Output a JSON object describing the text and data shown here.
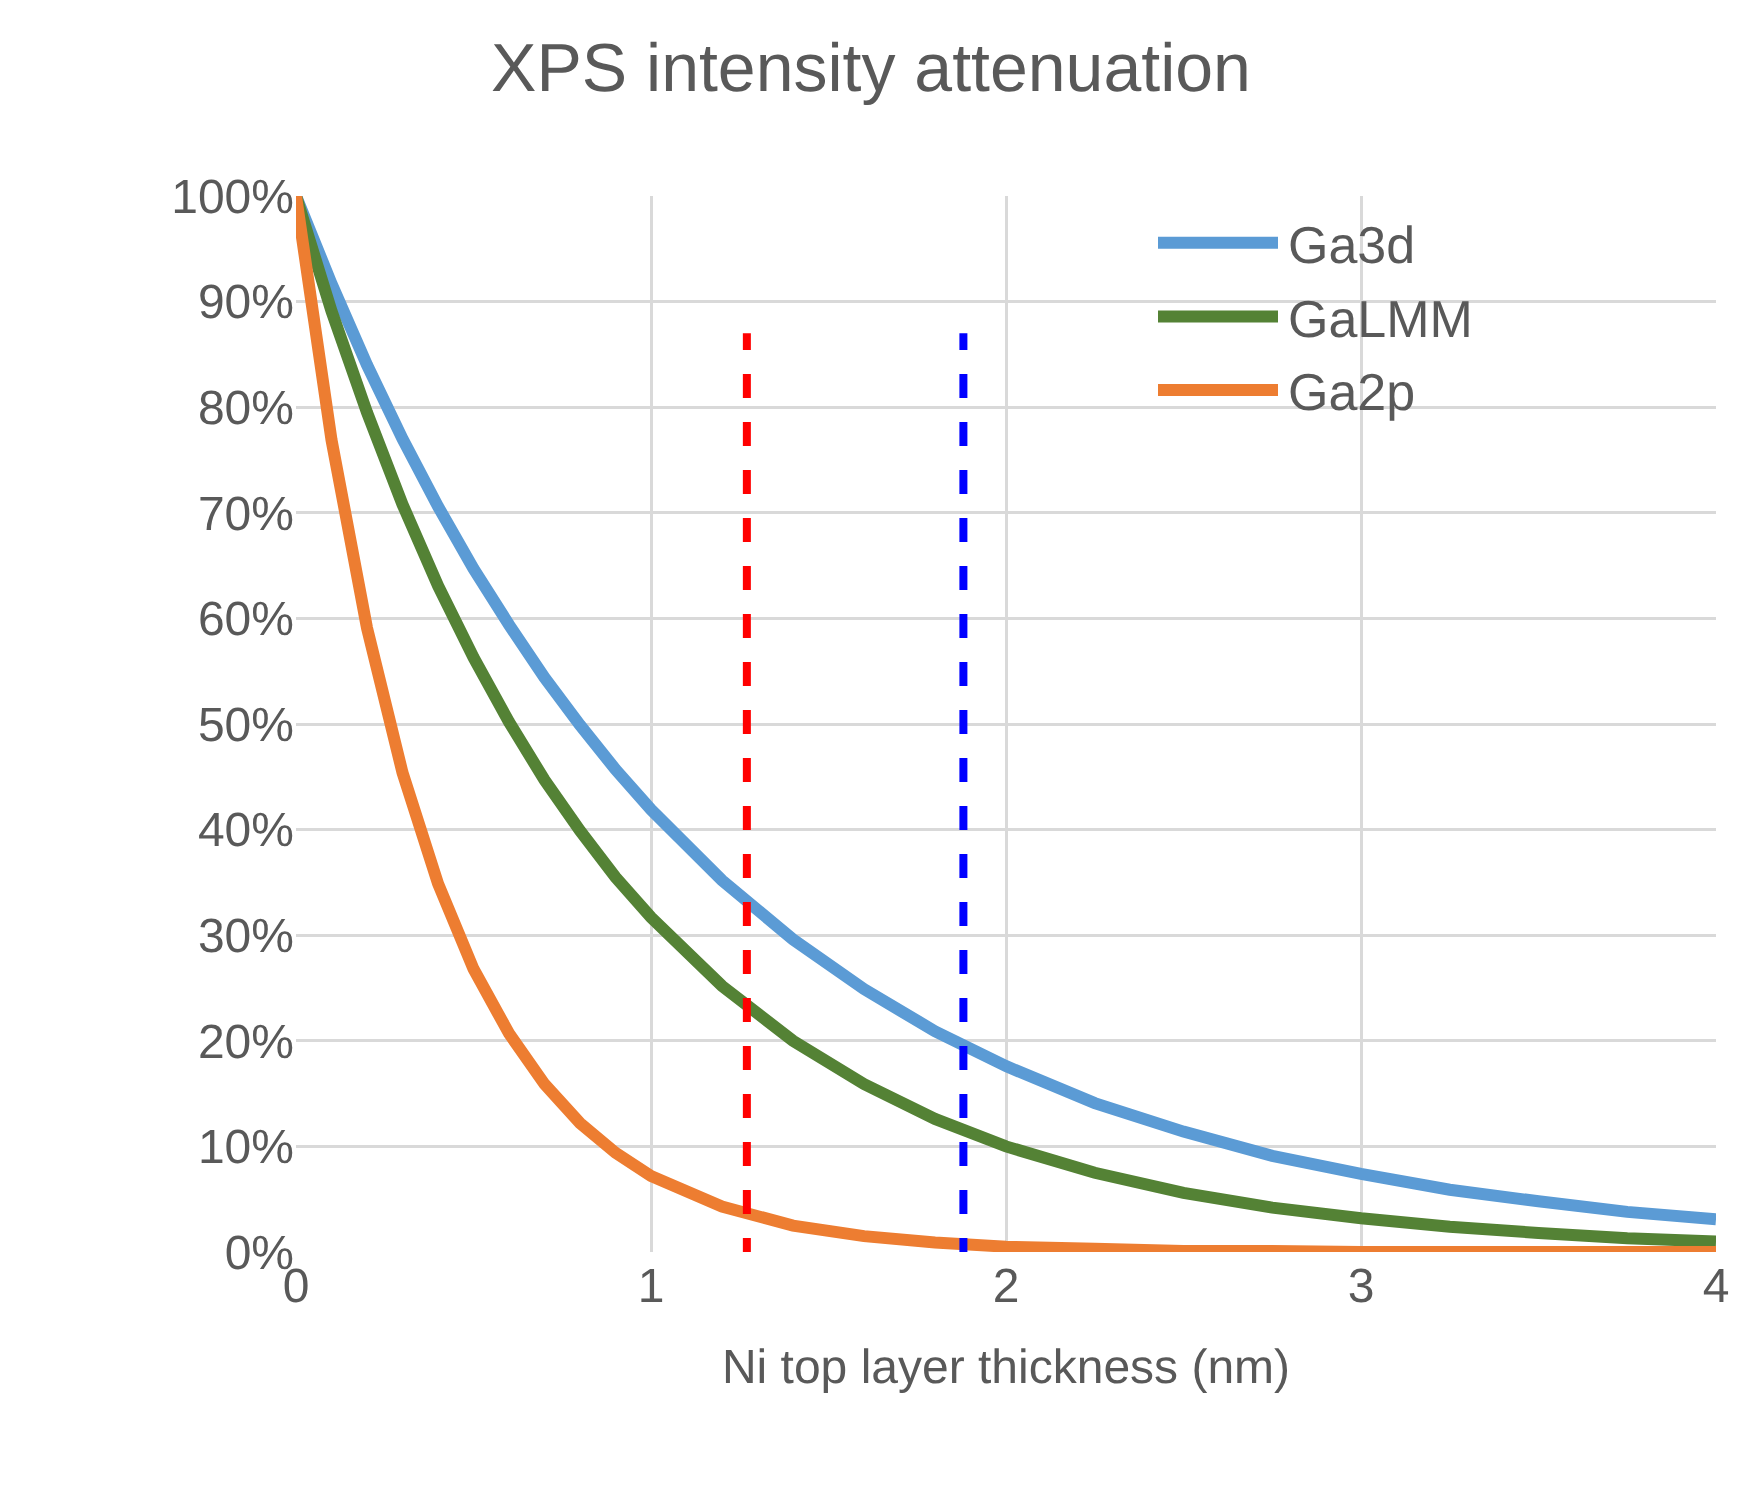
{
  "chart_data": {
    "type": "line",
    "title": "XPS intensity attenuation",
    "xlabel": "Ni top layer thickness (nm)",
    "x": [
      0,
      0.1,
      0.2,
      0.3,
      0.4,
      0.5,
      0.6,
      0.7,
      0.8,
      0.9,
      1,
      1.2,
      1.4,
      1.6,
      1.8,
      2,
      2.25,
      2.5,
      2.75,
      3,
      3.25,
      3.5,
      3.75,
      4
    ],
    "series": [
      {
        "name": "Ga3d",
        "color": "#5b9bd5",
        "values": [
          100,
          91.7,
          84.0,
          77.0,
          70.6,
          64.7,
          59.4,
          54.4,
          49.9,
          45.7,
          41.9,
          35.2,
          29.6,
          24.9,
          20.9,
          17.6,
          14.1,
          11.4,
          9.1,
          7.4,
          5.9,
          4.8,
          3.8,
          3.1
        ]
      },
      {
        "name": "GaLMM",
        "color": "#548235",
        "values": [
          100,
          89.1,
          79.5,
          70.8,
          63.1,
          56.3,
          50.2,
          44.7,
          39.9,
          35.5,
          31.7,
          25.2,
          20.0,
          15.9,
          12.6,
          10.0,
          7.5,
          5.6,
          4.2,
          3.2,
          2.4,
          1.8,
          1.3,
          1.0
        ]
      },
      {
        "name": "Ga2p",
        "color": "#ed7d31",
        "values": [
          100,
          76.9,
          59.1,
          45.4,
          34.9,
          26.8,
          20.7,
          15.9,
          12.2,
          9.4,
          7.2,
          4.3,
          2.5,
          1.5,
          0.9,
          0.5,
          0.3,
          0.1,
          0.1,
          0,
          0,
          0,
          0,
          0
        ]
      }
    ],
    "xlim": [
      0,
      4
    ],
    "xticks": [
      0,
      1,
      2,
      3,
      4
    ],
    "ylim": [
      0,
      100
    ],
    "yticks": [
      {
        "value": 0,
        "label": "0%"
      },
      {
        "value": 10,
        "label": "10%"
      },
      {
        "value": 20,
        "label": "20%"
      },
      {
        "value": 30,
        "label": "30%"
      },
      {
        "value": 40,
        "label": "40%"
      },
      {
        "value": 50,
        "label": "50%"
      },
      {
        "value": 60,
        "label": "60%"
      },
      {
        "value": 70,
        "label": "70%"
      },
      {
        "value": 80,
        "label": "80%"
      },
      {
        "value": 90,
        "label": "90%"
      },
      {
        "value": 100,
        "label": "100%"
      }
    ],
    "ref_lines": [
      {
        "axis": "x",
        "value": 1.27,
        "color": "#ff0000",
        "line_style": "dashed"
      },
      {
        "axis": "x",
        "value": 1.88,
        "color": "#0000ff",
        "line_style": "dashed"
      }
    ],
    "grid": true,
    "legend": "top right",
    "marker": "none",
    "line_style": "solid"
  }
}
